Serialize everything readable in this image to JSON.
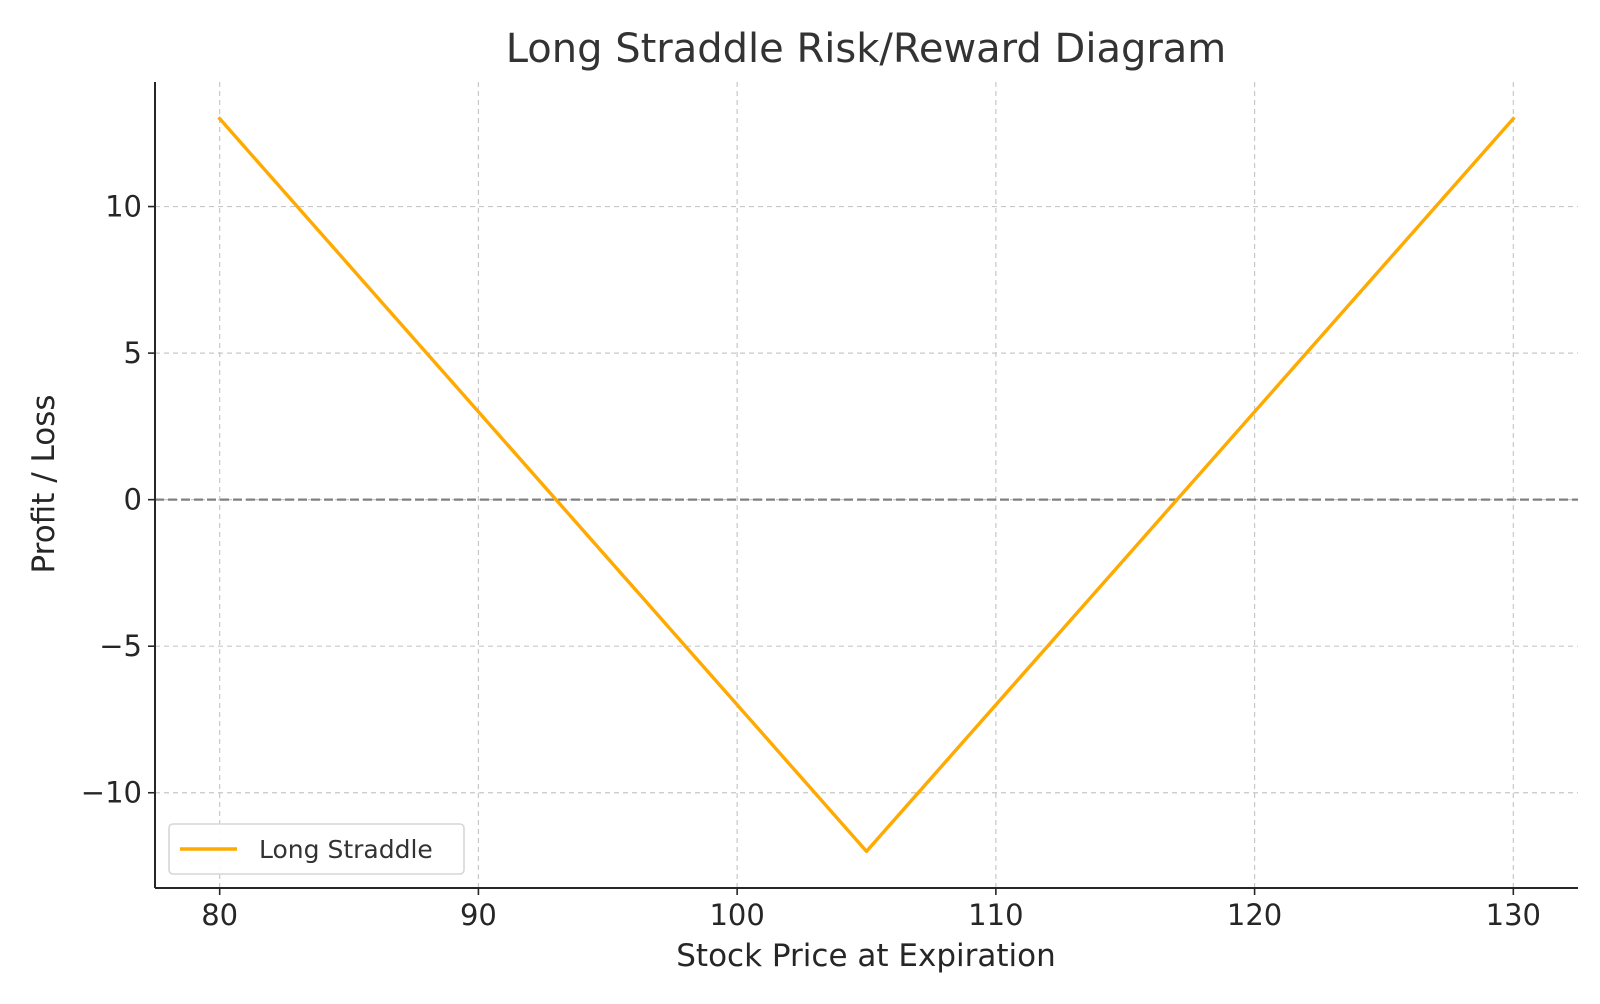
{
  "chart_data": {
    "type": "line",
    "title": "Long Straddle Risk/Reward Diagram",
    "xlabel": "Stock Price at Expiration",
    "ylabel": "Profit / Loss",
    "xlim": [
      77.5,
      132.5
    ],
    "ylim": [
      -13.25,
      14.25
    ],
    "x_ticks": [
      80,
      90,
      100,
      110,
      120,
      130
    ],
    "x_tick_labels": [
      "80",
      "90",
      "100",
      "110",
      "120",
      "130"
    ],
    "y_ticks": [
      -10,
      -5,
      0,
      5,
      10
    ],
    "y_tick_labels": [
      "−10",
      "−5",
      "0",
      "5",
      "10"
    ],
    "grid": true,
    "reference_line": {
      "y": 0,
      "style": "dashed",
      "color": "#808080"
    },
    "legend": {
      "position": "lower-left"
    },
    "series": [
      {
        "name": "Long Straddle",
        "color": "#ffaa00",
        "x": [
          80,
          105,
          130
        ],
        "y": [
          13,
          -12,
          13
        ]
      }
    ]
  }
}
